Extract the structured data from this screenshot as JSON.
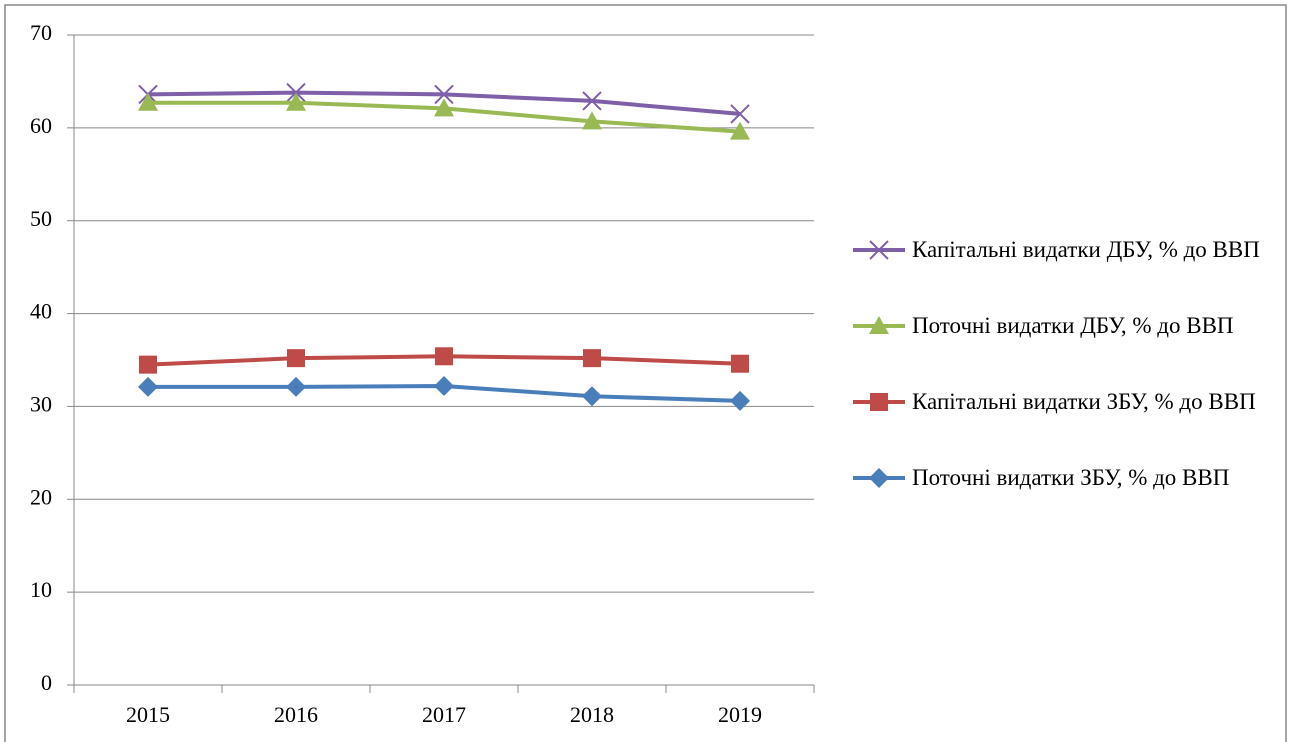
{
  "chart_data": {
    "type": "line",
    "categories": [
      "2015",
      "2016",
      "2017",
      "2018",
      "2019"
    ],
    "series": [
      {
        "name": "Капітальні видатки ДБУ, % до ВВП",
        "color": "#7e5fa8",
        "marker": "x",
        "values": [
          63.6,
          63.8,
          63.6,
          62.9,
          61.5
        ]
      },
      {
        "name": "Поточні видатки ДБУ, % до ВВП",
        "color": "#98b954",
        "marker": "triangle",
        "values": [
          62.7,
          62.7,
          62.1,
          60.7,
          59.6
        ]
      },
      {
        "name": "Капітальні видатки ЗБУ, % до ВВП",
        "color": "#be4b48",
        "marker": "square",
        "values": [
          34.5,
          35.2,
          35.4,
          35.2,
          34.6
        ]
      },
      {
        "name": "Поточні видатки ЗБУ, % до ВВП",
        "color": "#4a7ebb",
        "marker": "diamond",
        "values": [
          32.1,
          32.1,
          32.2,
          31.1,
          30.6
        ]
      }
    ],
    "ylim": [
      0,
      70
    ],
    "yticks": [
      0,
      10,
      20,
      30,
      40,
      50,
      60,
      70
    ],
    "grid": true,
    "legend": "right"
  }
}
